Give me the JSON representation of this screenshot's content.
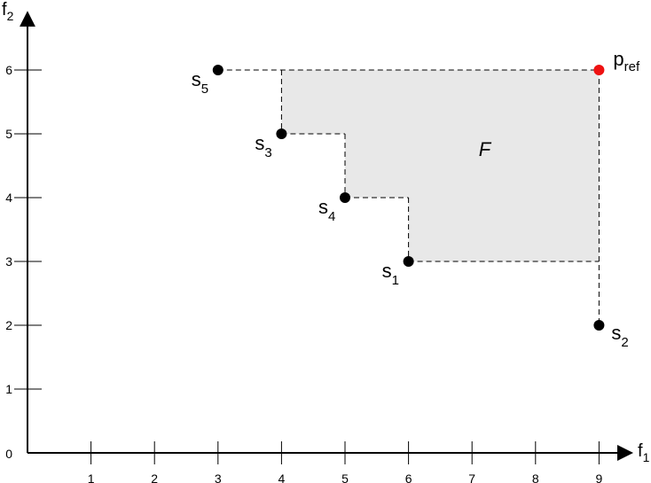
{
  "chart_data": {
    "type": "scatter",
    "xlabel": {
      "base": "f",
      "sub": "1"
    },
    "ylabel": {
      "base": "f",
      "sub": "2"
    },
    "origin_label": "0",
    "xlim": [
      0,
      9.5
    ],
    "ylim": [
      0,
      6.5
    ],
    "x_ticks": [
      1,
      2,
      3,
      4,
      5,
      6,
      7,
      8,
      9
    ],
    "y_ticks": [
      1,
      2,
      3,
      4,
      5,
      6
    ],
    "grid": false,
    "points": [
      {
        "id": "s1",
        "label": "s",
        "sub": "1",
        "x": 6,
        "y": 3,
        "color": "#000000",
        "label_pos": "below-left"
      },
      {
        "id": "s2",
        "label": "s",
        "sub": "2",
        "x": 9,
        "y": 2,
        "color": "#000000",
        "label_pos": "below-right"
      },
      {
        "id": "s3",
        "label": "s",
        "sub": "3",
        "x": 4,
        "y": 5,
        "color": "#000000",
        "label_pos": "below-left"
      },
      {
        "id": "s4",
        "label": "s",
        "sub": "4",
        "x": 5,
        "y": 4,
        "color": "#000000",
        "label_pos": "below-left"
      },
      {
        "id": "s5",
        "label": "s",
        "sub": "5",
        "x": 3,
        "y": 6,
        "color": "#000000",
        "label_pos": "below-left"
      }
    ],
    "reference_point": {
      "label": "p",
      "sub": "ref",
      "x": 9,
      "y": 6,
      "color": "#ee1111"
    },
    "dominated_region": {
      "label": "F",
      "fill": "#e8e8e8",
      "label_x": 7.2,
      "label_y": 4.65,
      "polygon": [
        [
          4,
          6
        ],
        [
          9,
          6
        ],
        [
          9,
          3
        ],
        [
          6,
          3
        ],
        [
          6,
          4
        ],
        [
          5,
          4
        ],
        [
          5,
          5
        ],
        [
          4,
          5
        ]
      ]
    },
    "dashed_lines": [
      [
        [
          3,
          6
        ],
        [
          9,
          6
        ]
      ],
      [
        [
          4,
          6
        ],
        [
          4,
          5
        ]
      ],
      [
        [
          4,
          5
        ],
        [
          5,
          5
        ]
      ],
      [
        [
          5,
          5
        ],
        [
          5,
          4
        ]
      ],
      [
        [
          5,
          4
        ],
        [
          6,
          4
        ]
      ],
      [
        [
          6,
          4
        ],
        [
          6,
          3
        ]
      ],
      [
        [
          6,
          3
        ],
        [
          9,
          3
        ]
      ],
      [
        [
          9,
          6
        ],
        [
          9,
          2
        ]
      ]
    ]
  }
}
